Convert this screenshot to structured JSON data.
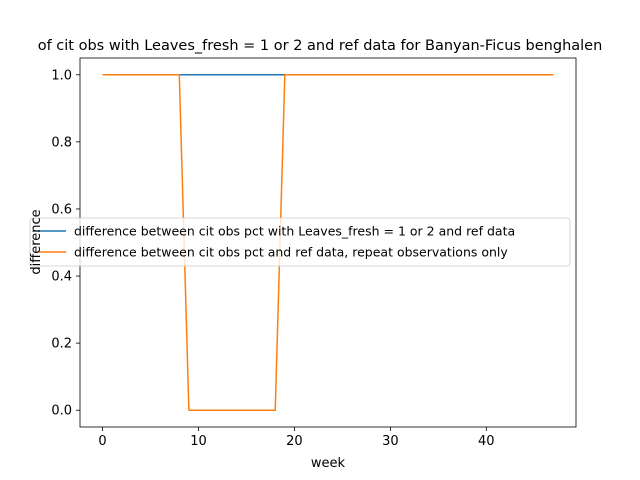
{
  "chart_data": {
    "type": "line",
    "title": "of cit obs with Leaves_fresh = 1 or 2 and ref data for Banyan-Ficus benghalen",
    "xlabel": "week",
    "ylabel": "difference",
    "xlim": [
      -2.35,
      49.35
    ],
    "ylim": [
      -0.05,
      1.05
    ],
    "xticks": [
      0,
      10,
      20,
      30,
      40
    ],
    "yticks": [
      0.0,
      0.2,
      0.4,
      0.6,
      0.8,
      1.0
    ],
    "xtick_labels": [
      "0",
      "10",
      "20",
      "30",
      "40"
    ],
    "ytick_labels": [
      "0.0",
      "0.2",
      "0.4",
      "0.6",
      "0.8",
      "1.0"
    ],
    "grid": false,
    "legend_position": "center-left",
    "series": [
      {
        "name": "difference between cit obs pct with Leaves_fresh = 1 or 2 and ref data",
        "color": "#1f77b4",
        "x": [
          0,
          47
        ],
        "y": [
          1.0,
          1.0
        ]
      },
      {
        "name": "difference between cit obs pct and ref data, repeat observations only",
        "color": "#ff7f0e",
        "x": [
          0,
          8,
          9,
          18,
          19,
          47
        ],
        "y": [
          1.0,
          1.0,
          0.0,
          0.0,
          1.0,
          1.0
        ]
      }
    ]
  }
}
